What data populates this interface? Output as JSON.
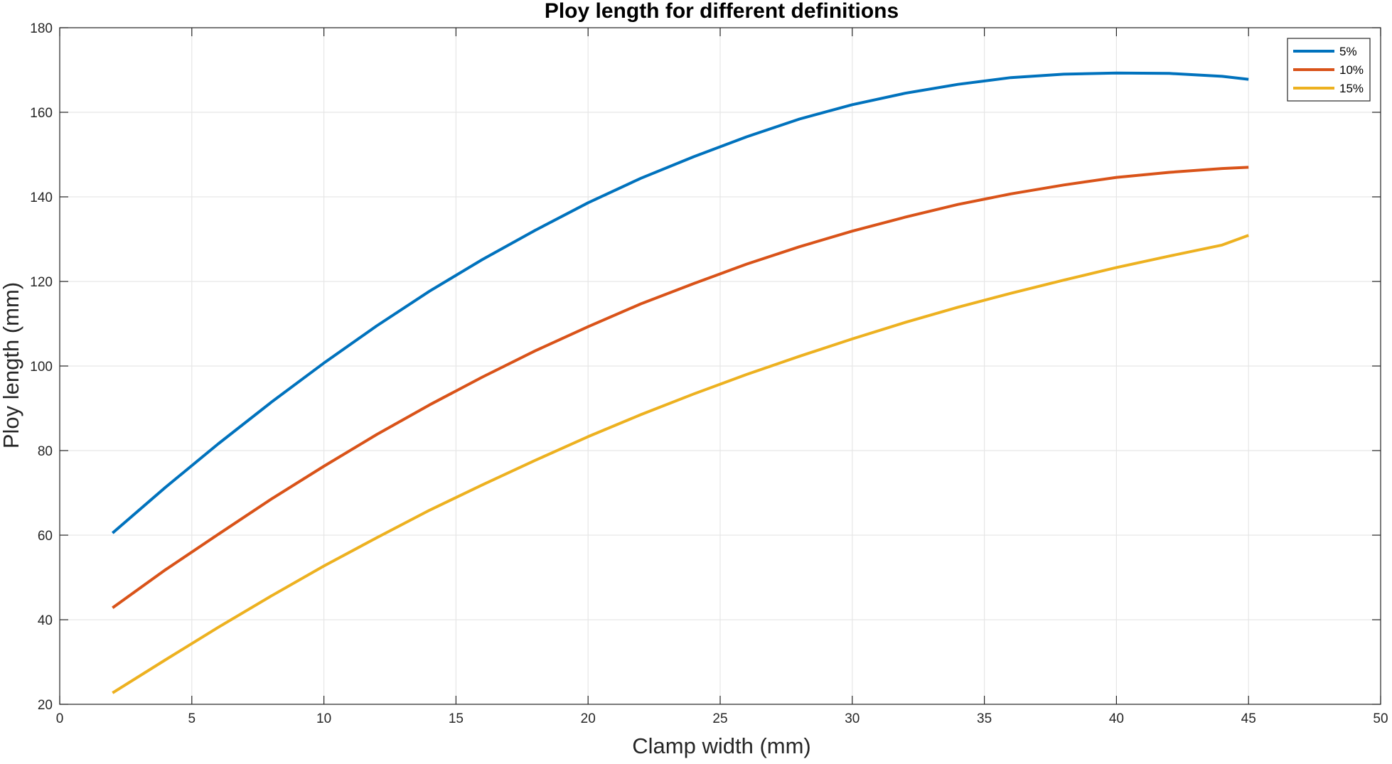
{
  "chart_data": {
    "type": "line",
    "title": "Ploy length for different definitions",
    "xlabel": "Clamp width (mm)",
    "ylabel": "Ploy length (mm)",
    "xlim": [
      0,
      50
    ],
    "ylim": [
      20,
      180
    ],
    "xticks": [
      0,
      5,
      10,
      15,
      20,
      25,
      30,
      35,
      40,
      45,
      50
    ],
    "yticks": [
      20,
      40,
      60,
      80,
      100,
      120,
      140,
      160,
      180
    ],
    "xtick_labels": [
      "0",
      "5",
      "10",
      "15",
      "20",
      "25",
      "30",
      "35",
      "40",
      "45",
      "50"
    ],
    "ytick_labels": [
      "20",
      "40",
      "60",
      "80",
      "100",
      "120",
      "140",
      "160",
      "180"
    ],
    "grid": true,
    "legend_position": "top-right",
    "x": [
      2,
      4,
      6,
      8,
      10,
      12,
      14,
      16,
      18,
      20,
      22,
      24,
      26,
      28,
      30,
      32,
      34,
      36,
      38,
      40,
      42,
      44,
      45
    ],
    "series": [
      {
        "name": "5%",
        "color": "#0072BD",
        "values": [
          60.5,
          71.3,
          81.6,
          91.4,
          100.7,
          109.5,
          117.7,
          125.2,
          132.1,
          138.6,
          144.4,
          149.5,
          154.2,
          158.4,
          161.8,
          164.5,
          166.6,
          168.2,
          169.0,
          169.3,
          169.2,
          168.5,
          167.8
        ]
      },
      {
        "name": "10%",
        "color": "#D95319",
        "values": [
          42.8,
          51.8,
          60.2,
          68.5,
          76.3,
          83.8,
          90.8,
          97.4,
          103.6,
          109.3,
          114.7,
          119.5,
          124.1,
          128.2,
          131.9,
          135.2,
          138.2,
          140.7,
          142.8,
          144.6,
          145.8,
          146.7,
          147.0
        ]
      },
      {
        "name": "15%",
        "color": "#EDB120",
        "values": [
          22.7,
          30.5,
          38.2,
          45.6,
          52.7,
          59.4,
          65.9,
          71.9,
          77.7,
          83.3,
          88.5,
          93.4,
          98.0,
          102.3,
          106.4,
          110.3,
          113.9,
          117.2,
          120.3,
          123.3,
          126.0,
          128.6,
          130.9
        ]
      }
    ]
  }
}
